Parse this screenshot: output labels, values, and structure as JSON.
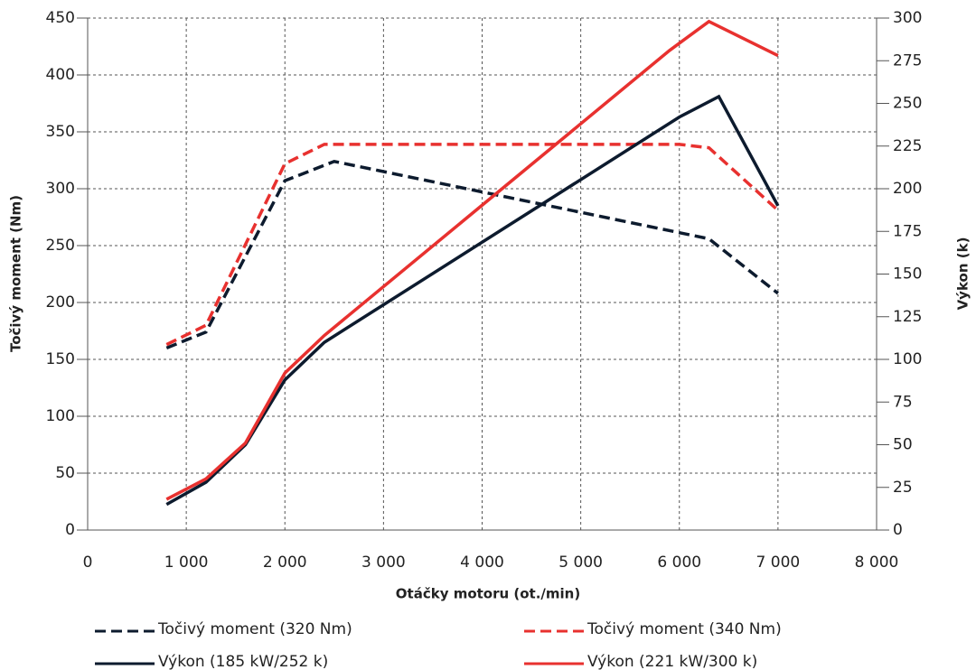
{
  "chart_data": {
    "type": "line",
    "ylabel": "Točivý moment (Nm)",
    "y2label": "Výkon (k)",
    "xlabel": "Otáčky motoru (ot./min)",
    "xlim": [
      0,
      8000
    ],
    "xticks": [
      0,
      {
        "value": 1000,
        "label": "1 000"
      },
      {
        "value": 2000,
        "label": "2 000"
      },
      {
        "value": 3000,
        "label": "3 000"
      },
      {
        "value": 4000,
        "label": "4 000"
      },
      {
        "value": 5000,
        "label": "5 000"
      },
      {
        "value": 6000,
        "label": "6 000"
      },
      {
        "value": 7000,
        "label": "7 000"
      },
      {
        "value": 8000,
        "label": "8 000"
      }
    ],
    "ylim": [
      0,
      450
    ],
    "yticks": [
      0,
      50,
      100,
      150,
      200,
      250,
      300,
      350,
      400,
      450
    ],
    "y2lim": [
      0,
      300
    ],
    "y2ticks": [
      0,
      25,
      50,
      75,
      100,
      125,
      150,
      175,
      200,
      225,
      250,
      275,
      300
    ],
    "grid": true,
    "series": [
      {
        "name": "Točivý moment (320 Nm)",
        "color": "#0d1b2e",
        "style": "dashed",
        "axis": "y",
        "x": [
          800,
          1200,
          2000,
          2500,
          6300,
          7000
        ],
        "values": [
          160,
          174,
          307,
          324,
          256,
          208
        ]
      },
      {
        "name": "Točivý moment (340 Nm)",
        "color": "#e8312f",
        "style": "dashed",
        "axis": "y",
        "x": [
          800,
          1200,
          2000,
          2400,
          6000,
          6300,
          7000
        ],
        "values": [
          163,
          180,
          322,
          339,
          339,
          336,
          281
        ]
      },
      {
        "name": "Výkon (185 kW/252 k)",
        "color": "#0d1b2e",
        "style": "solid",
        "axis": "y2",
        "x": [
          800,
          1200,
          1600,
          2000,
          2400,
          6000,
          6400,
          7000
        ],
        "values": [
          15,
          28,
          50,
          88,
          110,
          242,
          254,
          190
        ]
      },
      {
        "name": "Výkon (221 kW/300 k)",
        "color": "#e8312f",
        "style": "solid",
        "axis": "y2",
        "x": [
          800,
          1200,
          1600,
          2000,
          2400,
          5900,
          6300,
          7000
        ],
        "values": [
          18,
          30,
          51,
          92,
          114,
          281,
          298,
          278
        ]
      }
    ]
  }
}
